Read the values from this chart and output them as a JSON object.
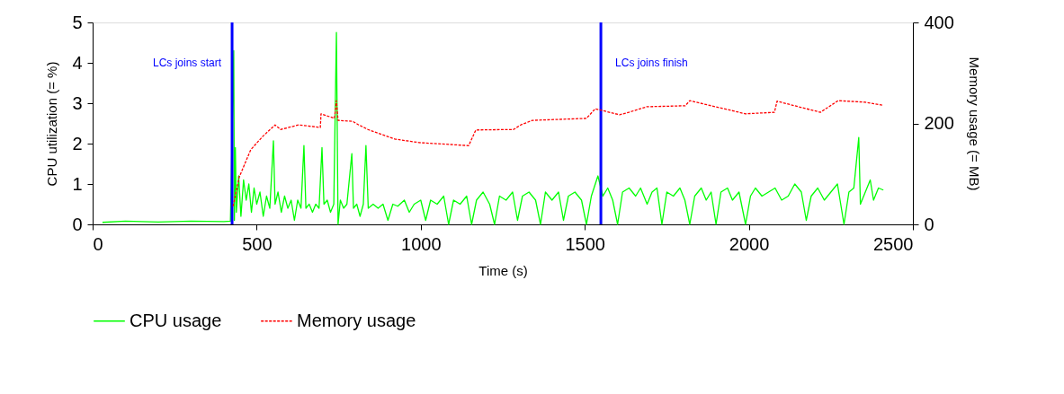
{
  "chart_data": {
    "type": "line",
    "xlabel": "Time (s)",
    "ylabel": "CPU utilization (= %)",
    "y2label": "Memory usage (= MB)",
    "xlim": [
      0,
      2500
    ],
    "xticks": [
      0,
      500,
      1000,
      1500,
      2000,
      2500
    ],
    "ylim": [
      0,
      5
    ],
    "yticks": [
      0,
      1,
      2,
      3,
      4,
      5
    ],
    "y2lim": [
      0,
      400
    ],
    "y2ticks": [
      0,
      200,
      400
    ],
    "grid": false,
    "legend": "bottom",
    "ref_lines": [
      {
        "axis": "x",
        "value": 425,
        "label": "LCs joins start",
        "color": "#0000ff"
      },
      {
        "axis": "x",
        "value": 1549,
        "label": "LCs joins finish",
        "color": "#0000ff"
      }
    ],
    "series": [
      {
        "name": "CPU usage",
        "color": "#00ff00",
        "line_style": "solid",
        "x": [
          30,
          100,
          200,
          300,
          400,
          420,
          430,
          432,
          435,
          438,
          445,
          452,
          460,
          468,
          476,
          484,
          492,
          500,
          510,
          520,
          530,
          540,
          551,
          556,
          565,
          575,
          585,
          595,
          605,
          615,
          625,
          635,
          644,
          650,
          660,
          670,
          680,
          690,
          699,
          705,
          715,
          725,
          735,
          743,
          748,
          755,
          765,
          775,
          790,
          795,
          805,
          815,
          825,
          833,
          840,
          855,
          870,
          885,
          900,
          915,
          930,
          950,
          965,
          980,
          1000,
          1015,
          1030,
          1050,
          1070,
          1085,
          1100,
          1120,
          1140,
          1155,
          1170,
          1190,
          1210,
          1225,
          1240,
          1260,
          1280,
          1295,
          1310,
          1330,
          1350,
          1365,
          1380,
          1400,
          1420,
          1435,
          1450,
          1470,
          1490,
          1505,
          1520,
          1540,
          1555,
          1570,
          1585,
          1600,
          1615,
          1635,
          1655,
          1670,
          1690,
          1705,
          1720,
          1735,
          1750,
          1770,
          1790,
          1805,
          1820,
          1835,
          1855,
          1870,
          1885,
          1900,
          1915,
          1935,
          1950,
          1970,
          1990,
          2005,
          2020,
          2040,
          2060,
          2080,
          2100,
          2120,
          2140,
          2160,
          2175,
          2190,
          2210,
          2230,
          2250,
          2270,
          2290,
          2305,
          2320,
          2335,
          2340,
          2355,
          2370,
          2380,
          2395,
          2410
        ],
        "values": [
          0.05,
          0.08,
          0.06,
          0.08,
          0.07,
          0.08,
          4.3,
          0.1,
          1.9,
          0.3,
          1.2,
          0.2,
          1.1,
          0.6,
          1.0,
          0.3,
          0.9,
          0.5,
          0.8,
          0.2,
          0.7,
          0.4,
          2.07,
          0.5,
          0.8,
          0.3,
          0.7,
          0.4,
          0.6,
          0.1,
          0.6,
          0.4,
          1.95,
          0.4,
          0.5,
          0.3,
          0.5,
          0.4,
          1.9,
          0.5,
          0.6,
          0.3,
          0.5,
          4.75,
          0.0,
          0.6,
          0.4,
          0.5,
          1.75,
          0.4,
          0.5,
          0.2,
          0.5,
          1.95,
          0.4,
          0.5,
          0.4,
          0.5,
          0.1,
          0.5,
          0.45,
          0.6,
          0.3,
          0.5,
          0.6,
          0.1,
          0.6,
          0.5,
          0.7,
          0.0,
          0.6,
          0.5,
          0.7,
          0.0,
          0.6,
          0.8,
          0.5,
          0.0,
          0.7,
          0.6,
          0.8,
          0.1,
          0.7,
          0.8,
          0.6,
          0.0,
          0.8,
          0.6,
          0.8,
          0.1,
          0.7,
          0.8,
          0.6,
          0.0,
          0.7,
          1.2,
          0.7,
          0.9,
          0.6,
          0.0,
          0.8,
          0.9,
          0.7,
          0.9,
          0.5,
          0.8,
          0.9,
          0.0,
          0.8,
          0.7,
          0.9,
          0.6,
          0.0,
          0.7,
          0.9,
          0.6,
          0.8,
          0.0,
          0.8,
          0.9,
          0.6,
          0.8,
          0.0,
          0.7,
          0.9,
          0.7,
          0.8,
          0.9,
          0.6,
          0.7,
          1.0,
          0.8,
          0.1,
          0.7,
          0.9,
          0.6,
          0.8,
          1.0,
          0.0,
          0.8,
          0.9,
          2.15,
          0.5,
          0.8,
          1.1,
          0.6,
          0.9,
          0.85
        ]
      },
      {
        "name": "Memory usage",
        "color": "#ff0000",
        "line_style": "dashed",
        "axis": "y2",
        "x": [
          428,
          447,
          482,
          518,
          556,
          573,
          628,
          694,
          696,
          737,
          743,
          748,
          793,
          811,
          839,
          921,
          995,
          1146,
          1168,
          1283,
          1305,
          1340,
          1505,
          1532,
          1606,
          1634,
          1689,
          1806,
          1820,
          1990,
          2078,
          2086,
          2218,
          2272,
          2355,
          2410
        ],
        "values": [
          36,
          94,
          148,
          174,
          197,
          188,
          197,
          192,
          219,
          210,
          245,
          206,
          204,
          197,
          188,
          169,
          162,
          156,
          187,
          188,
          197,
          206,
          210,
          229,
          217,
          222,
          233,
          235,
          245,
          219,
          222,
          244,
          222,
          245,
          242,
          236
        ]
      }
    ]
  }
}
